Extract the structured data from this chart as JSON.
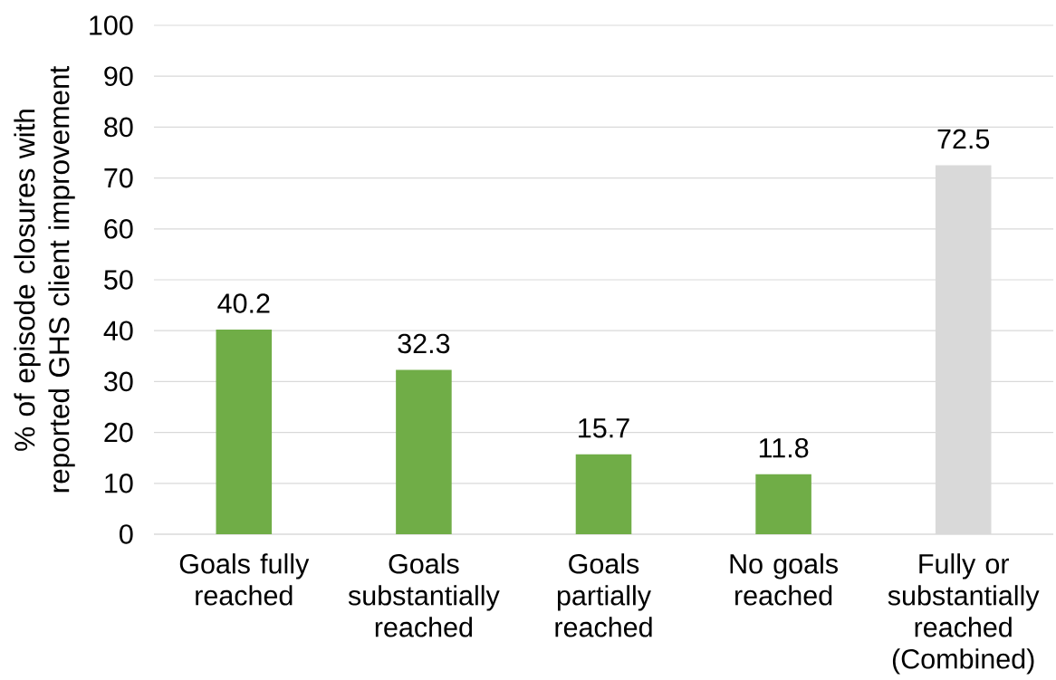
{
  "chart_data": {
    "type": "bar",
    "ylabel": "% of episode closures with reported GHS client improvement",
    "categories": [
      "Goals fully reached",
      "Goals substantially reached",
      "Goals partially reached",
      "No goals reached",
      "Fully or substantially reached (Combined)"
    ],
    "values": [
      40.2,
      32.3,
      15.7,
      11.8,
      72.5
    ],
    "colors": [
      "#70ad47",
      "#70ad47",
      "#70ad47",
      "#70ad47",
      "#d9d9d9"
    ],
    "ylim": [
      0,
      100
    ],
    "yticks": [
      0,
      10,
      20,
      30,
      40,
      50,
      60,
      70,
      80,
      90,
      100
    ],
    "grid": "y",
    "data_labels": true
  }
}
